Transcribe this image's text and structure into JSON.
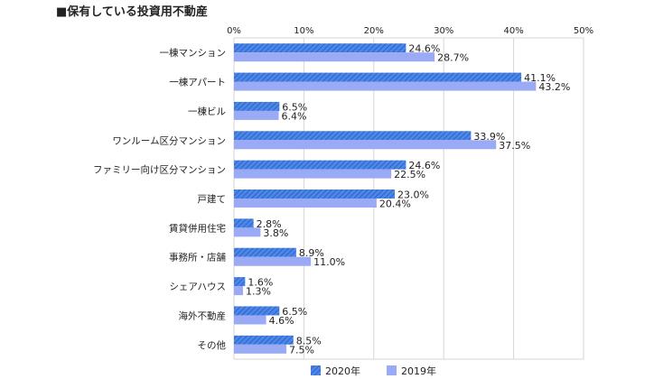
{
  "chart_data": {
    "type": "bar",
    "orientation": "horizontal",
    "title": "■保有している投資用不動産",
    "categories": [
      "一棟マンション",
      "一棟アパート",
      "一棟ビル",
      "ワンルーム区分マンション",
      "ファミリー向け区分マンション",
      "戸建て",
      "賃貸併用住宅",
      "事務所・店舗",
      "シェアハウス",
      "海外不動産",
      "その他"
    ],
    "series": [
      {
        "name": "2020年",
        "values": [
          24.6,
          41.1,
          6.5,
          33.9,
          24.6,
          23.0,
          2.8,
          8.9,
          1.6,
          6.5,
          8.5
        ],
        "value_labels": [
          "24.6%",
          "41.1%",
          "6.5%",
          "33.9%",
          "24.6%",
          "23.0%",
          "2.8%",
          "8.9%",
          "1.6%",
          "6.5%",
          "8.5%"
        ],
        "color": "#2f6fd8",
        "pattern": "diagonal-hatch"
      },
      {
        "name": "2019年",
        "values": [
          28.7,
          43.2,
          6.4,
          37.5,
          22.5,
          20.4,
          3.8,
          11.0,
          1.3,
          4.6,
          7.5
        ],
        "value_labels": [
          "28.7%",
          "43.2%",
          "6.4%",
          "37.5%",
          "22.5%",
          "20.4%",
          "3.8%",
          "11.0%",
          "1.3%",
          "4.6%",
          "7.5%"
        ],
        "color": "#9aaaf4",
        "pattern": "solid"
      }
    ],
    "x_ticks": [
      0,
      10,
      20,
      30,
      40,
      50
    ],
    "x_tick_labels": [
      "0%",
      "10%",
      "20%",
      "30%",
      "40%",
      "50%"
    ],
    "xlim": [
      0,
      50
    ],
    "xlabel": "",
    "ylabel": "",
    "grid": true,
    "legend_position": "bottom"
  }
}
